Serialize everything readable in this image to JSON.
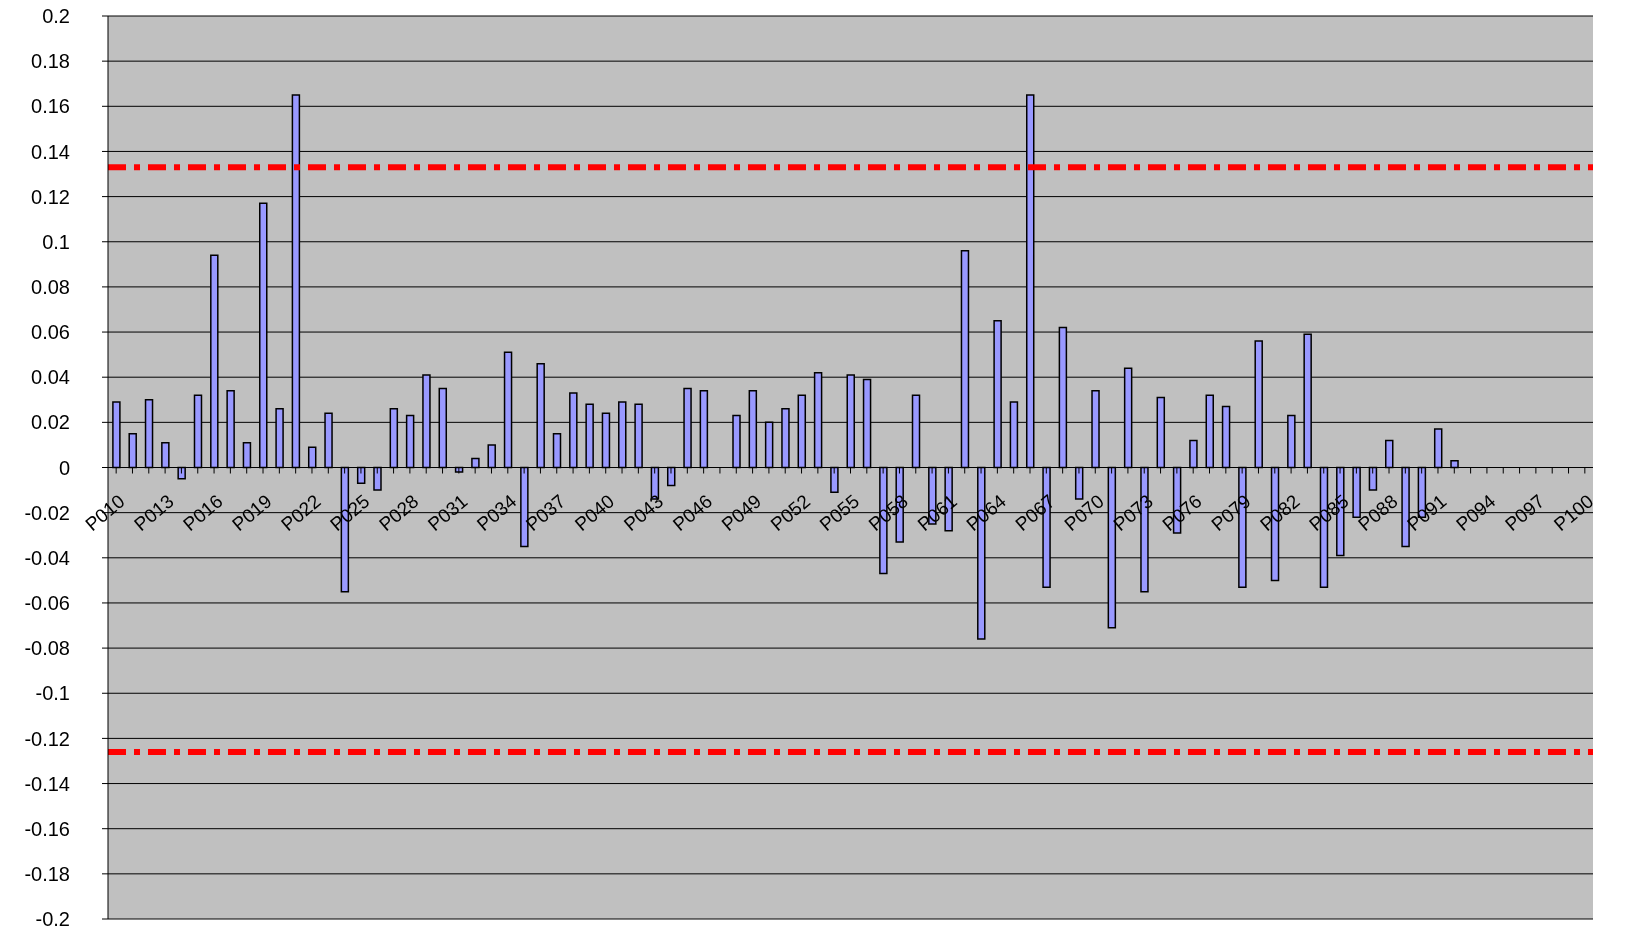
{
  "chart_data": {
    "type": "bar",
    "categories": [
      "P010",
      null,
      null,
      "P013",
      null,
      null,
      "P016",
      null,
      null,
      "P019",
      null,
      null,
      "P022",
      null,
      null,
      "P025",
      null,
      null,
      "P028",
      null,
      null,
      "P031",
      null,
      null,
      "P034",
      null,
      null,
      "P037",
      null,
      null,
      "P040",
      null,
      null,
      "P043",
      null,
      null,
      "P046",
      null,
      null,
      "P049",
      null,
      null,
      "P052",
      null,
      null,
      "P055",
      null,
      null,
      "P058",
      null,
      null,
      "P061",
      null,
      null,
      "P064",
      null,
      null,
      "P067",
      null,
      null,
      "P070",
      null,
      null,
      "P073",
      null,
      null,
      "P076",
      null,
      null,
      "P079",
      null,
      null,
      "P082",
      null,
      null,
      "P085",
      null,
      null,
      "P088",
      null,
      null,
      "P091",
      null,
      null,
      "P094",
      null,
      null,
      "P097",
      null,
      null,
      "P100"
    ],
    "values": [
      0.029,
      0.015,
      0.03,
      0.011,
      -0.005,
      0.032,
      0.094,
      0.034,
      0.011,
      0.117,
      0.026,
      0.165,
      0.009,
      0.024,
      -0.055,
      -0.007,
      -0.01,
      0.026,
      0.023,
      0.041,
      0.035,
      -0.002,
      0.004,
      0.01,
      0.051,
      -0.035,
      0.046,
      0.015,
      0.033,
      0.028,
      0.024,
      0.029,
      0.028,
      -0.014,
      -0.008,
      0.035,
      0.034,
      null,
      0.023,
      0.034,
      0.02,
      0.026,
      0.032,
      0.042,
      -0.011,
      0.041,
      0.039,
      -0.047,
      -0.033,
      0.032,
      -0.025,
      -0.028,
      0.096,
      -0.076,
      0.065,
      0.029,
      0.165,
      -0.053,
      0.062,
      -0.014,
      0.034,
      -0.071,
      0.044,
      -0.055,
      0.031,
      -0.029,
      0.012,
      0.032,
      0.027,
      -0.053,
      0.056,
      -0.05,
      0.023,
      0.059,
      -0.053,
      -0.039,
      -0.022,
      -0.01,
      0.012,
      -0.035,
      -0.022,
      0.017,
      0.003,
      null,
      null,
      null,
      null,
      null,
      null,
      null,
      null
    ],
    "color": "#9999ff",
    "ylim": [
      -0.2,
      0.2
    ],
    "yticks": [
      -0.2,
      -0.18,
      -0.16,
      -0.14,
      -0.12,
      -0.1,
      -0.08,
      -0.06,
      -0.04,
      -0.02,
      0,
      0.02,
      0.04,
      0.06,
      0.08,
      0.1,
      0.12,
      0.14,
      0.16,
      0.18,
      0.2
    ],
    "grid": "y",
    "ref_lines": [
      {
        "axis": "y",
        "value": 0.133,
        "color": "#ff0000",
        "line_style": "dashed"
      },
      {
        "axis": "y",
        "value": -0.126,
        "color": "#ff0000",
        "line_style": "dashed"
      }
    ]
  }
}
